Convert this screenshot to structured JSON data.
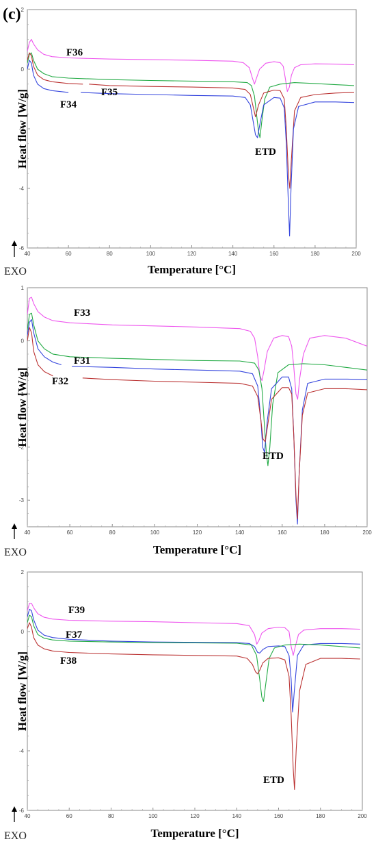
{
  "panel_label": "(c)",
  "colors": {
    "pink": "#ee55ee",
    "green": "#22aa44",
    "red": "#bb3333",
    "blue": "#3344dd"
  },
  "chart_data": [
    {
      "type": "line",
      "xlabel": "Temperature [°C]",
      "ylabel": "Heat flow [W/g]",
      "direction_label": "EXO",
      "xlim": [
        40,
        200
      ],
      "ylim": [
        -6,
        2
      ],
      "xticks": [
        40,
        60,
        80,
        100,
        120,
        140,
        160,
        180,
        200
      ],
      "yticks": [
        -6,
        -4,
        -2,
        0,
        2
      ],
      "annotations": [
        {
          "text": "ETD"
        }
      ],
      "series": [
        {
          "name": "F36",
          "color": "#ee55ee",
          "x": [
            40,
            41,
            42,
            43,
            45,
            48,
            52,
            60,
            80,
            100,
            120,
            140,
            145,
            148,
            149.5,
            150.5,
            151.5,
            153,
            156,
            160,
            163,
            164.5,
            165.5,
            166.5,
            167.5,
            168.5,
            170,
            173,
            180,
            190,
            199
          ],
          "y": [
            0.6,
            0.9,
            1.0,
            0.85,
            0.65,
            0.5,
            0.42,
            0.38,
            0.34,
            0.32,
            0.3,
            0.27,
            0.22,
            0.05,
            -0.3,
            -0.5,
            -0.3,
            0.0,
            0.2,
            0.25,
            0.22,
            0.1,
            -0.3,
            -0.75,
            -0.6,
            -0.2,
            0.05,
            0.15,
            0.18,
            0.17,
            0.15
          ]
        },
        {
          "name": "",
          "color": "#22aa44",
          "x": [
            40,
            41,
            42,
            43,
            45,
            48,
            52,
            60,
            80,
            100,
            120,
            140,
            147,
            149,
            150.5,
            151.5,
            152.5,
            153.2,
            154,
            155.5,
            158,
            163,
            170,
            180,
            190,
            199
          ],
          "y": [
            0.2,
            0.5,
            0.55,
            0.3,
            0.0,
            -0.15,
            -0.25,
            -0.3,
            -0.35,
            -0.38,
            -0.4,
            -0.42,
            -0.45,
            -0.55,
            -0.9,
            -1.5,
            -2.1,
            -2.3,
            -1.8,
            -1.0,
            -0.6,
            -0.5,
            -0.45,
            -0.48,
            -0.52,
            -0.55
          ]
        },
        {
          "name": "F35",
          "color": "#bb3333",
          "x": [
            40,
            41,
            42,
            43,
            45,
            48,
            52,
            60,
            67,
            null,
            70,
            80,
            100,
            120,
            140,
            146,
            148.5,
            150,
            151,
            152.5,
            155,
            160,
            163,
            165,
            166,
            167,
            167.7,
            168.5,
            170,
            173,
            180,
            190,
            199
          ],
          "y": [
            0.3,
            0.55,
            0.45,
            0.1,
            -0.2,
            -0.35,
            -0.42,
            -0.48,
            -0.5,
            null,
            -0.5,
            -0.55,
            -0.58,
            -0.6,
            -0.63,
            -0.68,
            -0.85,
            -1.3,
            -1.6,
            -1.2,
            -0.8,
            -0.7,
            -0.72,
            -1.0,
            -2.0,
            -3.5,
            -4.0,
            -3.0,
            -1.4,
            -0.95,
            -0.85,
            -0.8,
            -0.78
          ]
        },
        {
          "name": "F34",
          "color": "#3344dd",
          "x": [
            40,
            41,
            42,
            43,
            45,
            48,
            52,
            60,
            null,
            66,
            80,
            100,
            120,
            140,
            146,
            148.5,
            150,
            151,
            152,
            153,
            155,
            160,
            163,
            165,
            166,
            167,
            167.6,
            168.3,
            169.5,
            172,
            180,
            190,
            199
          ],
          "y": [
            0.0,
            0.3,
            0.2,
            -0.2,
            -0.5,
            -0.65,
            -0.72,
            -0.78,
            null,
            -0.78,
            -0.82,
            -0.85,
            -0.88,
            -0.9,
            -0.95,
            -1.2,
            -1.8,
            -2.2,
            -2.3,
            -1.9,
            -1.2,
            -0.95,
            -0.97,
            -1.3,
            -2.5,
            -4.5,
            -5.6,
            -4.0,
            -2.0,
            -1.25,
            -1.1,
            -1.1,
            -1.12
          ]
        }
      ]
    },
    {
      "type": "line",
      "xlabel": "Temperature [°C]",
      "ylabel": "Heat flow [W/g]",
      "direction_label": "EXO",
      "xlim": [
        40,
        200
      ],
      "ylim": [
        -3.5,
        1
      ],
      "xticks": [
        40,
        60,
        80,
        100,
        120,
        140,
        160,
        180,
        200
      ],
      "yticks": [
        -3,
        -2,
        -1,
        0,
        1
      ],
      "annotations": [
        {
          "text": "ETD"
        }
      ],
      "series": [
        {
          "name": "F33",
          "color": "#ee55ee",
          "x": [
            40,
            41,
            42,
            43,
            45,
            48,
            52,
            60,
            80,
            100,
            120,
            140,
            145,
            147,
            148.5,
            149.5,
            150.5,
            151.5,
            153,
            156,
            160,
            163,
            164.5,
            165.5,
            166.5,
            167.3,
            168.3,
            170,
            173,
            180,
            190,
            200
          ],
          "y": [
            0.5,
            0.8,
            0.82,
            0.7,
            0.55,
            0.45,
            0.38,
            0.34,
            0.3,
            0.28,
            0.26,
            0.23,
            0.18,
            0.05,
            -0.3,
            -0.65,
            -0.75,
            -0.55,
            -0.2,
            0.05,
            0.1,
            0.08,
            -0.1,
            -0.5,
            -1.0,
            -1.1,
            -0.7,
            -0.25,
            0.05,
            0.1,
            0.05,
            -0.1
          ]
        },
        {
          "name": "",
          "color": "#22aa44",
          "x": [
            40,
            41,
            42,
            43,
            45,
            48,
            52,
            60,
            80,
            100,
            120,
            140,
            147,
            149,
            150.5,
            151.5,
            152.5,
            153.3,
            154.2,
            155.5,
            158,
            163,
            170,
            180,
            190,
            200
          ],
          "y": [
            0.2,
            0.5,
            0.52,
            0.3,
            0.0,
            -0.15,
            -0.25,
            -0.3,
            -0.33,
            -0.35,
            -0.37,
            -0.38,
            -0.42,
            -0.55,
            -0.9,
            -1.5,
            -2.1,
            -2.35,
            -2.0,
            -1.2,
            -0.6,
            -0.45,
            -0.43,
            -0.45,
            -0.5,
            -0.55
          ]
        },
        {
          "name": "F31",
          "color": "#3344dd",
          "x": [
            40,
            41,
            42,
            43,
            45,
            48,
            52,
            56,
            null,
            61,
            80,
            100,
            120,
            140,
            146,
            148.5,
            150,
            150.8,
            151.7,
            153,
            155,
            160,
            163,
            164.5,
            165.5,
            166.5,
            167.2,
            168,
            169.5,
            172,
            180,
            190,
            200
          ],
          "y": [
            0.1,
            0.35,
            0.4,
            0.15,
            -0.15,
            -0.3,
            -0.4,
            -0.45,
            null,
            -0.48,
            -0.5,
            -0.53,
            -0.55,
            -0.57,
            -0.62,
            -0.85,
            -1.5,
            -2.0,
            -2.1,
            -1.5,
            -0.9,
            -0.68,
            -0.68,
            -0.9,
            -1.8,
            -3.0,
            -3.45,
            -2.5,
            -1.3,
            -0.8,
            -0.72,
            -0.72,
            -0.73
          ]
        },
        {
          "name": "F32",
          "color": "#bb3333",
          "x": [
            40,
            41,
            42,
            43,
            45,
            48,
            52,
            null,
            66,
            80,
            100,
            120,
            140,
            146,
            148.5,
            150,
            151,
            152,
            153.5,
            155,
            160,
            163,
            164.5,
            165.5,
            166.5,
            167.2,
            168,
            169.5,
            172,
            180,
            190,
            200
          ],
          "y": [
            0.0,
            0.25,
            0.15,
            -0.2,
            -0.45,
            -0.58,
            -0.66,
            null,
            -0.7,
            -0.73,
            -0.76,
            -0.78,
            -0.8,
            -0.85,
            -1.05,
            -1.5,
            -1.85,
            -1.9,
            -1.5,
            -1.1,
            -0.88,
            -0.88,
            -1.0,
            -1.8,
            -2.9,
            -3.35,
            -2.5,
            -1.4,
            -0.98,
            -0.9,
            -0.9,
            -0.92
          ]
        }
      ]
    },
    {
      "type": "line",
      "xlabel": "Temperature [°C]",
      "ylabel": "Heat flow [W/g]",
      "direction_label": "EXO",
      "xlim": [
        40,
        200
      ],
      "ylim": [
        -6,
        2
      ],
      "xticks": [
        40,
        60,
        80,
        100,
        120,
        140,
        160,
        180,
        200
      ],
      "yticks": [
        -6,
        -4,
        -2,
        0,
        2
      ],
      "annotations": [
        {
          "text": "ETD"
        }
      ],
      "series": [
        {
          "name": "F39",
          "color": "#ee55ee",
          "x": [
            40,
            41,
            42,
            43,
            45,
            48,
            52,
            60,
            80,
            100,
            120,
            140,
            146,
            148.5,
            149.6,
            150.6,
            152,
            155,
            160,
            163,
            165,
            166,
            167,
            168,
            169.5,
            172,
            180,
            190,
            199
          ],
          "y": [
            0.7,
            0.95,
            0.95,
            0.8,
            0.6,
            0.48,
            0.42,
            0.38,
            0.35,
            0.33,
            0.3,
            0.27,
            0.2,
            -0.1,
            -0.42,
            -0.3,
            -0.05,
            0.1,
            0.15,
            0.13,
            0.0,
            -0.5,
            -0.8,
            -0.5,
            -0.1,
            0.05,
            0.1,
            0.1,
            0.08
          ]
        },
        {
          "name": "F37",
          "color": "#3344dd",
          "x": [
            40,
            41,
            42,
            43,
            45,
            48,
            52,
            60,
            80,
            100,
            120,
            140,
            146,
            148.5,
            150,
            151,
            152.5,
            155,
            160,
            163,
            165,
            166,
            166.7,
            167.5,
            169,
            172,
            180,
            190,
            199
          ],
          "y": [
            0.5,
            0.75,
            0.7,
            0.4,
            0.05,
            -0.12,
            -0.2,
            -0.26,
            -0.32,
            -0.35,
            -0.36,
            -0.37,
            -0.4,
            -0.5,
            -0.7,
            -0.72,
            -0.6,
            -0.5,
            -0.48,
            -0.5,
            -0.8,
            -1.6,
            -2.7,
            -2.0,
            -0.8,
            -0.45,
            -0.4,
            -0.4,
            -0.42
          ]
        },
        {
          "name": "",
          "color": "#22aa44",
          "x": [
            40,
            41,
            42,
            43,
            45,
            48,
            52,
            60,
            80,
            100,
            120,
            140,
            147,
            149.5,
            151,
            152,
            152.8,
            153.8,
            155.5,
            158,
            163,
            170,
            180,
            190,
            199
          ],
          "y": [
            0.3,
            0.55,
            0.5,
            0.2,
            -0.1,
            -0.22,
            -0.28,
            -0.32,
            -0.35,
            -0.37,
            -0.38,
            -0.39,
            -0.45,
            -0.8,
            -1.6,
            -2.2,
            -2.35,
            -1.8,
            -0.9,
            -0.55,
            -0.45,
            -0.42,
            -0.45,
            -0.5,
            -0.55
          ]
        },
        {
          "name": "F38",
          "color": "#bb3333",
          "x": [
            40,
            41,
            42,
            43,
            45,
            48,
            52,
            60,
            80,
            100,
            120,
            140,
            145,
            147.5,
            149,
            150,
            151,
            152.5,
            155,
            160,
            163,
            165,
            166,
            167,
            167.6,
            168.4,
            170,
            173,
            180,
            190,
            199
          ],
          "y": [
            0.1,
            0.3,
            0.15,
            -0.2,
            -0.45,
            -0.58,
            -0.65,
            -0.7,
            -0.75,
            -0.78,
            -0.8,
            -0.82,
            -0.9,
            -1.1,
            -1.35,
            -1.42,
            -1.3,
            -1.05,
            -0.9,
            -0.88,
            -0.95,
            -1.5,
            -2.8,
            -4.6,
            -5.3,
            -4.0,
            -2.0,
            -1.1,
            -0.9,
            -0.9,
            -0.92
          ]
        }
      ]
    }
  ]
}
